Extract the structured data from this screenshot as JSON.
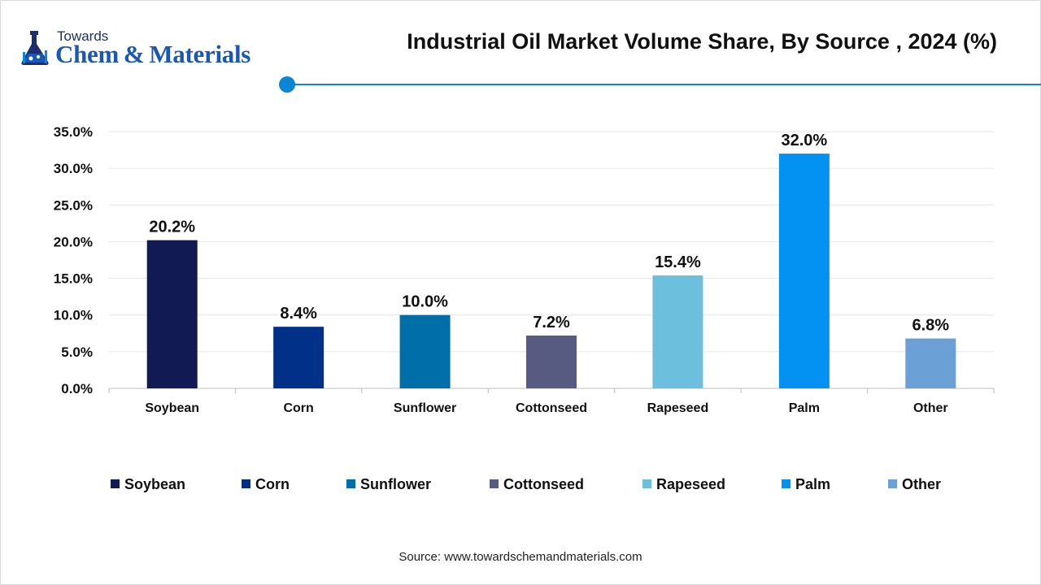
{
  "brand": {
    "top": "Towards",
    "main": "Chem & Materials"
  },
  "colors": {
    "accent": "#0a86d9",
    "brand_blue": "#1b57b4"
  },
  "source": "Source: www.towardschemandmaterials.com",
  "chart_data": {
    "type": "bar",
    "title": "Industrial Oil Market Volume Share, By Source , 2024 (%)",
    "categories": [
      "Soybean",
      "Corn",
      "Sunflower",
      "Cottonseed",
      "Rapeseed",
      "Palm",
      "Other"
    ],
    "values": [
      20.2,
      8.4,
      10.0,
      7.2,
      15.4,
      32.0,
      6.8
    ],
    "data_labels": [
      "20.2%",
      "8.4%",
      "10.0%",
      "7.2%",
      "15.4%",
      "32.0%",
      "6.8%"
    ],
    "colors": [
      "#111a52",
      "#003087",
      "#006ea8",
      "#575a81",
      "#6cc0dd",
      "#0391f2",
      "#6aa0d6"
    ],
    "yticks": [
      "0.0%",
      "5.0%",
      "10.0%",
      "15.0%",
      "20.0%",
      "25.0%",
      "30.0%",
      "35.0%"
    ],
    "ylim": [
      0,
      35
    ],
    "grid": true,
    "legend": [
      "Soybean",
      "Corn",
      "Sunflower",
      "Cottonseed",
      "Rapeseed",
      "Palm",
      "Other"
    ],
    "legend_position": "bottom",
    "xlabel": "",
    "ylabel": ""
  }
}
